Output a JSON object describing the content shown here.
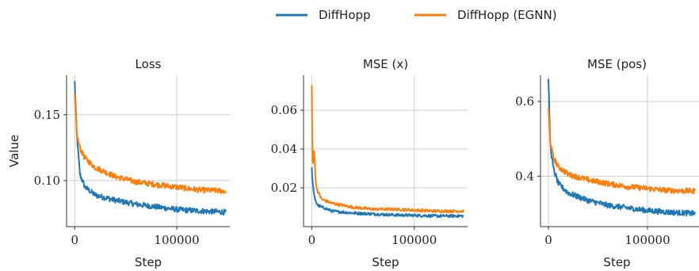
{
  "legend": {
    "placement": "top-center",
    "entries": [
      {
        "label": "DiffHopp",
        "color": "#1f77b4"
      },
      {
        "label": "DiffHopp (EGNN)",
        "color": "#ff7f0e"
      }
    ]
  },
  "chart_data": [
    {
      "type": "line",
      "title": "Loss",
      "xlabel": "Step",
      "ylabel": "Value",
      "xlim": [
        -8000,
        152000
      ],
      "ylim": [
        0.065,
        0.18
      ],
      "xticks": [
        0,
        100000
      ],
      "xtick_labels": [
        "0",
        "100000"
      ],
      "yticks": [
        0.1,
        0.15
      ],
      "ytick_labels": [
        "0.10",
        "0.15"
      ],
      "grid": true,
      "series": [
        {
          "name": "DiffHopp",
          "color": "#1f77b4",
          "x": [
            0,
            2000,
            5000,
            10000,
            20000,
            40000,
            60000,
            80000,
            100000,
            120000,
            148000
          ],
          "y": [
            0.175,
            0.135,
            0.105,
            0.095,
            0.089,
            0.085,
            0.082,
            0.08,
            0.078,
            0.077,
            0.076
          ]
        },
        {
          "name": "DiffHopp (EGNN)",
          "color": "#ff7f0e",
          "x": [
            0,
            2000,
            5000,
            10000,
            20000,
            40000,
            60000,
            80000,
            100000,
            120000,
            148000
          ],
          "y": [
            0.165,
            0.135,
            0.125,
            0.117,
            0.11,
            0.103,
            0.099,
            0.097,
            0.095,
            0.093,
            0.092
          ]
        }
      ]
    },
    {
      "type": "line",
      "title": "MSE (x)",
      "xlabel": "Step",
      "ylabel": "",
      "xlim": [
        -8000,
        152000
      ],
      "ylim": [
        0.0,
        0.078
      ],
      "xticks": [
        0,
        100000
      ],
      "xtick_labels": [
        "0",
        "100000"
      ],
      "yticks": [
        0.02,
        0.04,
        0.06
      ],
      "ytick_labels": [
        "0.02",
        "0.04",
        "0.06"
      ],
      "grid": true,
      "series": [
        {
          "name": "DiffHopp",
          "color": "#1f77b4",
          "x": [
            0,
            1000,
            3000,
            6000,
            10000,
            20000,
            40000,
            60000,
            80000,
            100000,
            120000,
            148000
          ],
          "y": [
            0.03,
            0.022,
            0.014,
            0.011,
            0.01,
            0.008,
            0.007,
            0.0065,
            0.006,
            0.0058,
            0.0055,
            0.0055
          ]
        },
        {
          "name": "DiffHopp (EGNN)",
          "color": "#ff7f0e",
          "x": [
            0,
            1000,
            2500,
            4000,
            6000,
            10000,
            20000,
            40000,
            60000,
            80000,
            100000,
            120000,
            148000
          ],
          "y": [
            0.073,
            0.03,
            0.04,
            0.022,
            0.018,
            0.014,
            0.012,
            0.01,
            0.009,
            0.009,
            0.0085,
            0.008,
            0.008
          ]
        }
      ]
    },
    {
      "type": "line",
      "title": "MSE (pos)",
      "xlabel": "Step",
      "ylabel": "",
      "xlim": [
        -8000,
        152000
      ],
      "ylim": [
        0.265,
        0.67
      ],
      "xticks": [
        0,
        100000
      ],
      "xtick_labels": [
        "0",
        "100000"
      ],
      "yticks": [
        0.4,
        0.6
      ],
      "ytick_labels": [
        "0.4",
        "0.6"
      ],
      "grid": true,
      "series": [
        {
          "name": "DiffHopp",
          "color": "#1f77b4",
          "x": [
            0,
            2000,
            5000,
            10000,
            20000,
            40000,
            60000,
            80000,
            100000,
            120000,
            148000
          ],
          "y": [
            0.655,
            0.48,
            0.42,
            0.38,
            0.355,
            0.335,
            0.322,
            0.315,
            0.308,
            0.304,
            0.3
          ]
        },
        {
          "name": "DiffHopp (EGNN)",
          "color": "#ff7f0e",
          "x": [
            0,
            2000,
            5000,
            10000,
            20000,
            40000,
            60000,
            80000,
            100000,
            120000,
            148000
          ],
          "y": [
            0.58,
            0.49,
            0.45,
            0.425,
            0.405,
            0.39,
            0.38,
            0.372,
            0.367,
            0.362,
            0.36
          ]
        }
      ]
    }
  ]
}
